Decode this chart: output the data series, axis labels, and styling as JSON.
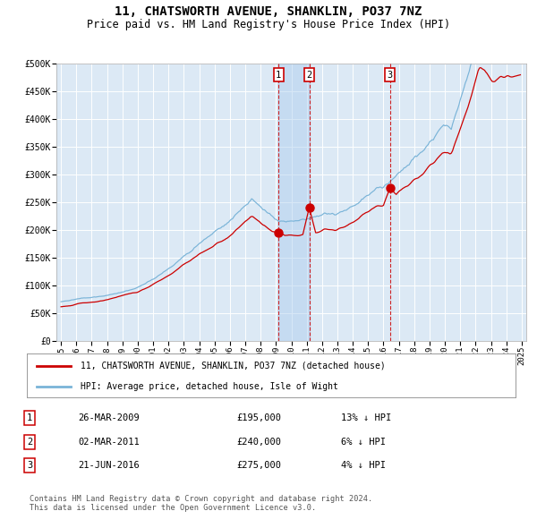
{
  "title": "11, CHATSWORTH AVENUE, SHANKLIN, PO37 7NZ",
  "subtitle": "Price paid vs. HM Land Registry's House Price Index (HPI)",
  "title_fontsize": 10,
  "subtitle_fontsize": 8.5,
  "bg_color": "#dce9f5",
  "grid_color": "#ffffff",
  "hpi_color": "#7ab4d8",
  "price_color": "#cc0000",
  "ylim": [
    0,
    500000
  ],
  "yticks": [
    0,
    50000,
    100000,
    150000,
    200000,
    250000,
    300000,
    350000,
    400000,
    450000,
    500000
  ],
  "ytick_labels": [
    "£0",
    "£50K",
    "£100K",
    "£150K",
    "£200K",
    "£250K",
    "£300K",
    "£350K",
    "£400K",
    "£450K",
    "£500K"
  ],
  "sale1_year": 2009.23,
  "sale2_year": 2011.17,
  "sale3_year": 2016.47,
  "sale1_price": 195000,
  "sale2_price": 240000,
  "sale3_price": 275000,
  "legend_line1": "11, CHATSWORTH AVENUE, SHANKLIN, PO37 7NZ (detached house)",
  "legend_line2": "HPI: Average price, detached house, Isle of Wight",
  "table_rows": [
    [
      "1",
      "26-MAR-2009",
      "£195,000",
      "13% ↓ HPI"
    ],
    [
      "2",
      "02-MAR-2011",
      "£240,000",
      "6% ↓ HPI"
    ],
    [
      "3",
      "21-JUN-2016",
      "£275,000",
      "4% ↓ HPI"
    ]
  ],
  "footnote": "Contains HM Land Registry data © Crown copyright and database right 2024.\nThis data is licensed under the Open Government Licence v3.0.",
  "x_start_year": 1995,
  "x_end_year": 2025
}
